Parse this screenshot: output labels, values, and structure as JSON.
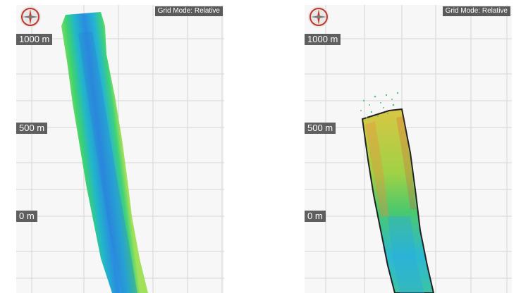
{
  "panels": [
    {
      "id": "left",
      "grid_mode_label": "Grid Mode: Relative",
      "axis_labels": [
        "1000 m",
        "500 m",
        "0 m"
      ],
      "compass_icon": "compass-rose-icon",
      "colormap": "depth-blue-green"
    },
    {
      "id": "right",
      "grid_mode_label": "Grid Mode: Relative",
      "axis_labels": [
        "1000 m",
        "500 m",
        "0 m"
      ],
      "compass_icon": "compass-rose-icon",
      "colormap": "depth-multicolor-sparse"
    }
  ],
  "colors": {
    "grid_line": "#d6d6d6",
    "label_bg": "#5f5f5f",
    "compass_accent": "#c0392b"
  }
}
